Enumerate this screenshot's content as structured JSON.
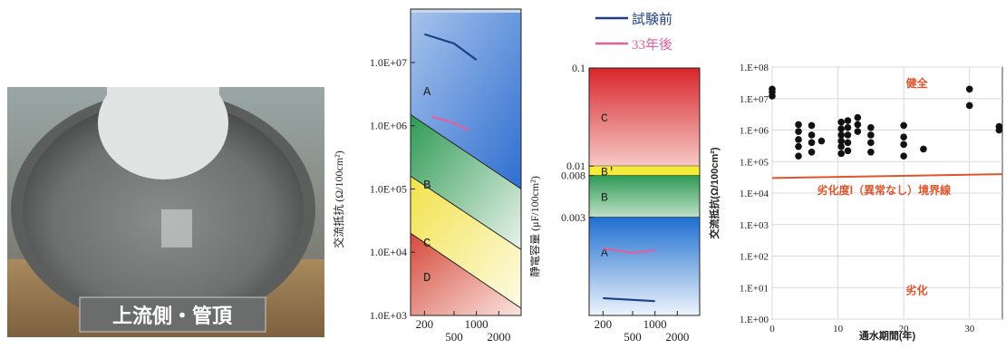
{
  "photo": {
    "caption": "上流側・管頂"
  },
  "legend": {
    "before": {
      "label": "試験前",
      "color": "#1f3f86"
    },
    "after": {
      "label": "33年後",
      "color": "#e0619e"
    }
  },
  "chart_data": [
    {
      "type": "line",
      "ylabel": "交流抵抗 (Ω/100cm²)",
      "xlabel": "",
      "yscale": "log",
      "ylim": [
        1000,
        100000000
      ],
      "xscale": "log",
      "xlim": [
        130,
        4000
      ],
      "y_ticks": [
        {
          "value": 1000,
          "label": "1.0E+03"
        },
        {
          "value": 10000,
          "label": "1.0E+04"
        },
        {
          "value": 100000,
          "label": "1.0E+05"
        },
        {
          "value": 1000000,
          "label": "1.0E+06"
        },
        {
          "value": 10000000,
          "label": "1.0E+07"
        }
      ],
      "x_ticks_upper": [
        {
          "value": 200,
          "label": "200"
        },
        {
          "value": 1000,
          "label": "1000"
        }
      ],
      "x_ticks_lower": [
        {
          "value": 500,
          "label": "500"
        },
        {
          "value": 2000,
          "label": "2000"
        }
      ],
      "zones": [
        {
          "label": "A",
          "color": "#2f6fd0"
        },
        {
          "label": "B",
          "color": "#2f9a55"
        },
        {
          "label": "C",
          "color": "#f2e24a"
        },
        {
          "label": "D",
          "color": "#d44a3a"
        }
      ],
      "zone_boundaries": [
        {
          "x1": 130,
          "y1": 1500000,
          "x2": 4000,
          "y2": 100000
        },
        {
          "x1": 130,
          "y1": 160000,
          "x2": 4000,
          "y2": 11000
        },
        {
          "x1": 130,
          "y1": 20000,
          "x2": 4000,
          "y2": 1300
        }
      ],
      "series": [
        {
          "name": "試験前",
          "x": [
            200,
            500,
            1000
          ],
          "y": [
            28000000,
            20000000,
            11000000
          ]
        },
        {
          "name": "33年後",
          "x": [
            250,
            500,
            800
          ],
          "y": [
            1400000,
            1100000,
            850000
          ]
        }
      ]
    },
    {
      "type": "line",
      "ylabel": "静電容量 (μF/100cm²)",
      "xlabel": "",
      "yscale": "log",
      "ylim": [
        0.0003,
        0.1
      ],
      "xscale": "log",
      "xlim": [
        130,
        4000
      ],
      "y_ticks": [
        {
          "value": 0.1,
          "label": "0.1"
        },
        {
          "value": 0.01,
          "label": "0.01"
        },
        {
          "value": 0.008,
          "label": "0.008"
        },
        {
          "value": 0.003,
          "label": "0.003"
        }
      ],
      "x_ticks_upper": [
        {
          "value": 200,
          "label": "200"
        },
        {
          "value": 1000,
          "label": "1000"
        }
      ],
      "x_ticks_lower": [
        {
          "value": 500,
          "label": "500"
        },
        {
          "value": 2000,
          "label": "2000"
        }
      ],
      "zones": [
        {
          "label": "C",
          "color": "#d8262c",
          "from": 0.01,
          "to": 0.1
        },
        {
          "label": "B'",
          "color": "#f5ec3a",
          "from": 0.008,
          "to": 0.01
        },
        {
          "label": "B",
          "color": "#2f9a55",
          "from": 0.003,
          "to": 0.008
        },
        {
          "label": "A",
          "color": "#1f6fd0",
          "from": 0.0003,
          "to": 0.003
        }
      ],
      "series": [
        {
          "name": "試験前",
          "x": [
            200,
            1000
          ],
          "y": [
            0.00045,
            0.00042
          ]
        },
        {
          "name": "33年後",
          "x": [
            200,
            500,
            1000
          ],
          "y": [
            0.00145,
            0.0013,
            0.00138
          ]
        }
      ]
    },
    {
      "type": "scatter",
      "xlabel": "通水期間(年)",
      "ylabel": "交流抵抗(Ω/100cm²)",
      "yscale": "log",
      "ylim": [
        1,
        100000000
      ],
      "xlim": [
        0,
        35
      ],
      "grid": true,
      "y_ticks": [
        {
          "value": 1,
          "label": "1.E+00"
        },
        {
          "value": 10,
          "label": "1.E+01"
        },
        {
          "value": 100,
          "label": "1.E+02"
        },
        {
          "value": 1000,
          "label": "1.E+03"
        },
        {
          "value": 10000,
          "label": "1.E+04"
        },
        {
          "value": 100000,
          "label": "1.E+05"
        },
        {
          "value": 1000000,
          "label": "1.E+06"
        },
        {
          "value": 10000000,
          "label": "1.E+07"
        },
        {
          "value": 100000000,
          "label": "1.E+08"
        }
      ],
      "x_ticks": [
        {
          "value": 0,
          "label": "0"
        },
        {
          "value": 10,
          "label": "10"
        },
        {
          "value": 20,
          "label": "20"
        },
        {
          "value": 30,
          "label": "30"
        }
      ],
      "annotations": [
        {
          "text": "健全",
          "x": 22,
          "y": 30000000
        },
        {
          "text": "劣化度Ⅰ（異常なし）境界線",
          "x": 17,
          "y": 12000
        },
        {
          "text": "劣化",
          "x": 22,
          "y": 8
        }
      ],
      "boundary": {
        "x1": 0,
        "y1": 30000,
        "x2": 35,
        "y2": 40000,
        "color": "#e0542c"
      },
      "points": [
        {
          "x": 0,
          "y": 12000000
        },
        {
          "x": 0,
          "y": 16000000
        },
        {
          "x": 0,
          "y": 20000000
        },
        {
          "x": 4,
          "y": 1500000
        },
        {
          "x": 4,
          "y": 900000
        },
        {
          "x": 4,
          "y": 500000
        },
        {
          "x": 4,
          "y": 300000
        },
        {
          "x": 4,
          "y": 150000
        },
        {
          "x": 6,
          "y": 1400000
        },
        {
          "x": 6,
          "y": 700000
        },
        {
          "x": 6,
          "y": 400000
        },
        {
          "x": 6,
          "y": 200000
        },
        {
          "x": 7.5,
          "y": 450000
        },
        {
          "x": 10.5,
          "y": 1800000
        },
        {
          "x": 10.5,
          "y": 1100000
        },
        {
          "x": 10.5,
          "y": 700000
        },
        {
          "x": 10.5,
          "y": 450000
        },
        {
          "x": 10.5,
          "y": 300000
        },
        {
          "x": 10.5,
          "y": 180000
        },
        {
          "x": 11.5,
          "y": 2000000
        },
        {
          "x": 11.5,
          "y": 1200000
        },
        {
          "x": 11.5,
          "y": 700000
        },
        {
          "x": 11.5,
          "y": 400000
        },
        {
          "x": 11.5,
          "y": 220000
        },
        {
          "x": 13,
          "y": 2500000
        },
        {
          "x": 13,
          "y": 1500000
        },
        {
          "x": 13,
          "y": 900000
        },
        {
          "x": 15,
          "y": 1200000
        },
        {
          "x": 15,
          "y": 700000
        },
        {
          "x": 15,
          "y": 400000
        },
        {
          "x": 15,
          "y": 200000
        },
        {
          "x": 20,
          "y": 1400000
        },
        {
          "x": 20,
          "y": 600000
        },
        {
          "x": 20,
          "y": 350000
        },
        {
          "x": 20,
          "y": 150000
        },
        {
          "x": 23,
          "y": 250000
        },
        {
          "x": 30,
          "y": 20000000
        },
        {
          "x": 30,
          "y": 6000000
        },
        {
          "x": 34.5,
          "y": 1300000
        },
        {
          "x": 34.5,
          "y": 1000000
        }
      ]
    }
  ]
}
